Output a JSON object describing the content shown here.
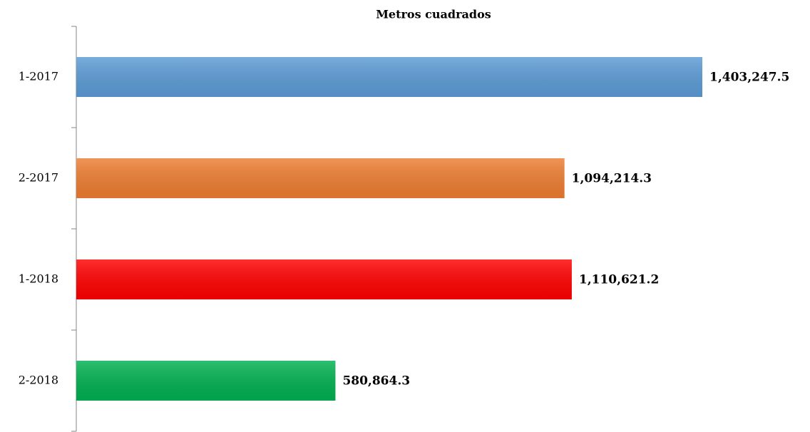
{
  "chart_data": {
    "type": "hbar",
    "title": "Metros cuadrados",
    "categories": [
      "1-2017",
      "2-2017",
      "1-2018",
      "2-2018"
    ],
    "values": [
      1403247.5,
      1094214.3,
      1110621.2,
      580864.3
    ],
    "value_labels": [
      "1,403,247.5",
      "1,094,214.3",
      "1,110,621.2",
      "580,864.3"
    ],
    "colors": [
      "#5b9bd5",
      "#ed7d31",
      "#ff0000",
      "#00b050"
    ]
  }
}
